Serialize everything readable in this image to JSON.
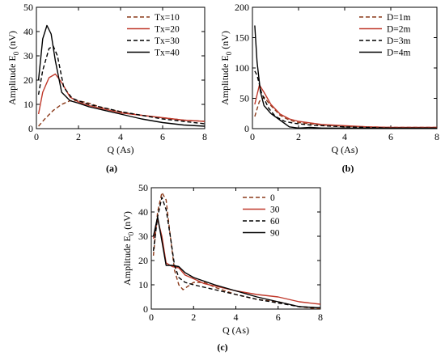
{
  "colors": {
    "dark_red": "#8B3A1A",
    "red": "#C0392B",
    "black": "#000000"
  },
  "chart_data": [
    {
      "type": "line",
      "panel_label": "(a)",
      "xlabel": "Q (As)",
      "ylabel": "Amplitude E",
      "ylabel_sub": "0",
      "ylabel_unit": " (nV)",
      "xlim": [
        0,
        8
      ],
      "ylim": [
        0,
        50
      ],
      "xticks": [
        0,
        2,
        4,
        6,
        8
      ],
      "yticks": [
        0,
        10,
        20,
        30,
        40,
        50
      ],
      "legend_position": "top-right",
      "series": [
        {
          "name": "Tx=10",
          "color": "#8B3A1A",
          "dash": "dashed",
          "x": [
            0.1,
            0.4,
            0.8,
            1.2,
            1.6,
            2.0,
            2.5,
            3.0,
            4.0,
            5.0,
            6.0,
            7.0,
            8.0
          ],
          "y": [
            1,
            4,
            7.5,
            10,
            11.5,
            11.5,
            10.5,
            9,
            7,
            5.5,
            4.5,
            3.5,
            3
          ]
        },
        {
          "name": "Tx=20",
          "color": "#C0392B",
          "dash": "solid",
          "x": [
            0.1,
            0.3,
            0.6,
            0.9,
            1.2,
            1.6,
            2.0,
            2.5,
            3.0,
            4.0,
            5.0,
            6.0,
            7.0,
            8.0
          ],
          "y": [
            6,
            15,
            21,
            22.5,
            19,
            13,
            11,
            9.5,
            8.5,
            6.5,
            5.5,
            4.5,
            3.5,
            3
          ]
        },
        {
          "name": "Tx=30",
          "color": "#000000",
          "dash": "dashed",
          "x": [
            0.1,
            0.3,
            0.6,
            0.8,
            1.0,
            1.3,
            1.7,
            2.0,
            2.5,
            3.0,
            4.0,
            5.0,
            6.0,
            7.0,
            8.0
          ],
          "y": [
            14,
            24,
            33,
            34,
            30,
            17,
            12.5,
            11.5,
            10,
            9,
            7,
            5.5,
            4,
            3,
            2
          ]
        },
        {
          "name": "Tx=40",
          "color": "#000000",
          "dash": "solid",
          "x": [
            0.1,
            0.3,
            0.5,
            0.7,
            0.9,
            1.2,
            1.6,
            2.0,
            2.5,
            3.0,
            4.0,
            5.0,
            6.0,
            7.0,
            8.0
          ],
          "y": [
            20,
            37,
            42.5,
            39,
            28,
            15,
            11.5,
            10.5,
            9,
            8,
            6,
            4,
            2.5,
            1.5,
            1
          ]
        }
      ]
    },
    {
      "type": "line",
      "panel_label": "(b)",
      "xlabel": "Q (As)",
      "ylabel": "Amplitude E",
      "ylabel_sub": "0",
      "ylabel_unit": " (nV)",
      "xlim": [
        0,
        8
      ],
      "ylim": [
        0,
        200
      ],
      "xticks": [
        0,
        2,
        4,
        6,
        8
      ],
      "yticks": [
        0,
        50,
        100,
        150,
        200
      ],
      "legend_position": "top-right",
      "series": [
        {
          "name": "D=1m",
          "color": "#8B3A1A",
          "dash": "dashed",
          "x": [
            0.1,
            0.3,
            0.5,
            0.8,
            1.2,
            1.6,
            2.0,
            3.0,
            4.0,
            5.0,
            6.0,
            7.0,
            8.0
          ],
          "y": [
            20,
            45,
            52,
            38,
            22,
            14,
            10,
            6,
            4,
            3,
            2,
            2,
            2
          ]
        },
        {
          "name": "D=2m",
          "color": "#C0392B",
          "dash": "solid",
          "x": [
            0.1,
            0.3,
            0.5,
            0.8,
            1.2,
            1.6,
            2.0,
            3.0,
            4.0,
            5.0,
            6.0,
            7.0,
            8.0
          ],
          "y": [
            40,
            72,
            60,
            40,
            24,
            16,
            12,
            7,
            5,
            3,
            2,
            2,
            2
          ]
        },
        {
          "name": "D=3m",
          "color": "#000000",
          "dash": "dashed",
          "x": [
            0.1,
            0.2,
            0.4,
            0.7,
            1.0,
            1.4,
            1.8,
            2.5,
            3.0,
            4.0,
            5.0,
            6.0,
            7.0,
            8.0
          ],
          "y": [
            95,
            88,
            58,
            34,
            20,
            12,
            9,
            6,
            5,
            3,
            2,
            1,
            1,
            1
          ]
        },
        {
          "name": "D=4m",
          "color": "#000000",
          "dash": "solid",
          "x": [
            0.1,
            0.2,
            0.35,
            0.5,
            0.8,
            1.2,
            1.6,
            2.0,
            2.5,
            3.0,
            4.0,
            5.0,
            6.0,
            7.0,
            8.0
          ],
          "y": [
            170,
            110,
            60,
            38,
            25,
            14,
            3,
            1,
            2,
            1,
            1,
            1,
            1,
            1,
            1
          ]
        }
      ]
    },
    {
      "type": "line",
      "panel_label": "(c)",
      "xlabel": "Q (As)",
      "ylabel": "Amplitude E",
      "ylabel_sub": "0",
      "ylabel_unit": " (nV)",
      "xlim": [
        0,
        8
      ],
      "ylim": [
        0,
        50
      ],
      "xticks": [
        0,
        2,
        4,
        6,
        8
      ],
      "yticks": [
        0,
        10,
        20,
        30,
        40,
        50
      ],
      "legend_position": "top-right",
      "series": [
        {
          "name": "0",
          "color": "#8B3A1A",
          "dash": "dashed",
          "x": [
            0.1,
            0.3,
            0.5,
            0.7,
            0.9,
            1.1,
            1.3,
            1.5,
            2.0,
            2.5,
            3.0,
            4.0,
            5.0,
            6.0,
            7.0,
            8.0
          ],
          "y": [
            22,
            40,
            48,
            45,
            30,
            16,
            10,
            8,
            11,
            11,
            9,
            6,
            4,
            3,
            1,
            0
          ]
        },
        {
          "name": "30",
          "color": "#C0392B",
          "dash": "solid",
          "x": [
            0.1,
            0.3,
            0.5,
            0.7,
            1.0,
            1.3,
            1.6,
            2.0,
            2.5,
            3.0,
            4.0,
            5.0,
            6.0,
            7.0,
            8.0
          ],
          "y": [
            29,
            37,
            30,
            19,
            17.5,
            17,
            14,
            12.5,
            10.5,
            9.5,
            7.5,
            6,
            5,
            3,
            2
          ]
        },
        {
          "name": "60",
          "color": "#000000",
          "dash": "dashed",
          "x": [
            0.1,
            0.3,
            0.5,
            0.7,
            0.9,
            1.1,
            1.3,
            1.6,
            2.0,
            2.5,
            3.0,
            4.0,
            5.0,
            6.0,
            7.0,
            8.0
          ],
          "y": [
            24,
            38,
            46,
            41,
            30,
            18,
            13,
            11,
            10,
            9,
            8,
            6,
            4,
            2.5,
            1,
            0.5
          ]
        },
        {
          "name": "90",
          "color": "#000000",
          "dash": "solid",
          "x": [
            0.1,
            0.3,
            0.5,
            0.7,
            1.0,
            1.3,
            1.6,
            2.0,
            2.5,
            3.0,
            4.0,
            5.0,
            6.0,
            7.0,
            8.0
          ],
          "y": [
            30,
            38,
            28,
            18,
            18,
            17.5,
            15,
            13,
            11.5,
            10,
            7.5,
            5,
            3,
            1,
            0.5
          ]
        }
      ]
    }
  ]
}
